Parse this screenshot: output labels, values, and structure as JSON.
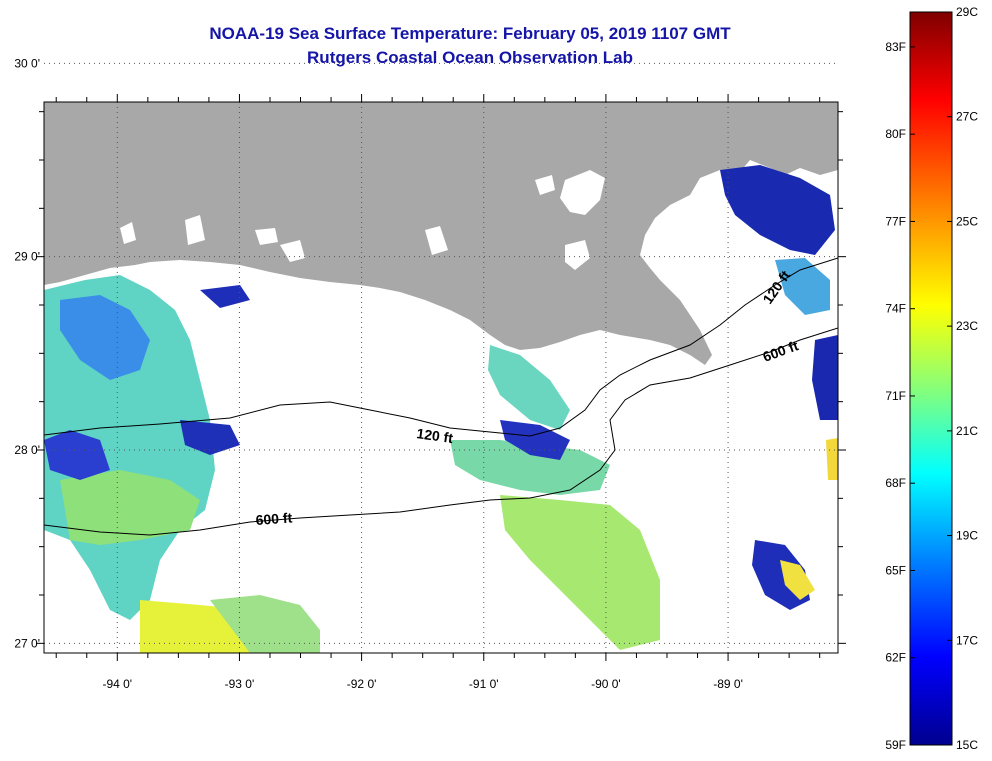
{
  "title": {
    "line1": "NOAA-19 Sea Surface Temperature:  February 05, 2019 1107 GMT",
    "line2": "Rutgers Coastal Ocean Observation Lab"
  },
  "map": {
    "lon_range": [
      -94.6,
      -88.1
    ],
    "lat_range": [
      26.95,
      29.8
    ],
    "lon_ticks": [
      -94,
      -93,
      -92,
      -91,
      -90,
      -89
    ],
    "lon_labels": [
      "-94 0'",
      "-93 0'",
      "-92 0'",
      "-91 0'",
      "-90 0'",
      "-89 0'"
    ],
    "lat_ticks": [
      30,
      29,
      28,
      27
    ],
    "lat_labels": [
      "30 0'",
      "29 0'",
      "28 0'",
      "27 0'"
    ],
    "grid": "dotted",
    "land_color": "#a8a8a8",
    "cloud_color": "#ffffff",
    "contours": [
      {
        "label": "120 ft"
      },
      {
        "label": "600 ft"
      },
      {
        "label": "120 ft",
        "position": "east"
      },
      {
        "label": "600 ft",
        "position": "east"
      }
    ]
  },
  "colorbar": {
    "fahrenheit_labels": [
      "83F",
      "80F",
      "77F",
      "74F",
      "71F",
      "68F",
      "65F",
      "62F",
      "59F"
    ],
    "celsius_labels": [
      "29C",
      "27C",
      "25C",
      "23C",
      "21C",
      "19C",
      "17C",
      "15C"
    ],
    "range_c": [
      15,
      29
    ],
    "colors": [
      "#7f0000",
      "#ff0000",
      "#ff8000",
      "#ffff00",
      "#80ff80",
      "#00ffff",
      "#0080ff",
      "#0000ff",
      "#00008f"
    ]
  }
}
